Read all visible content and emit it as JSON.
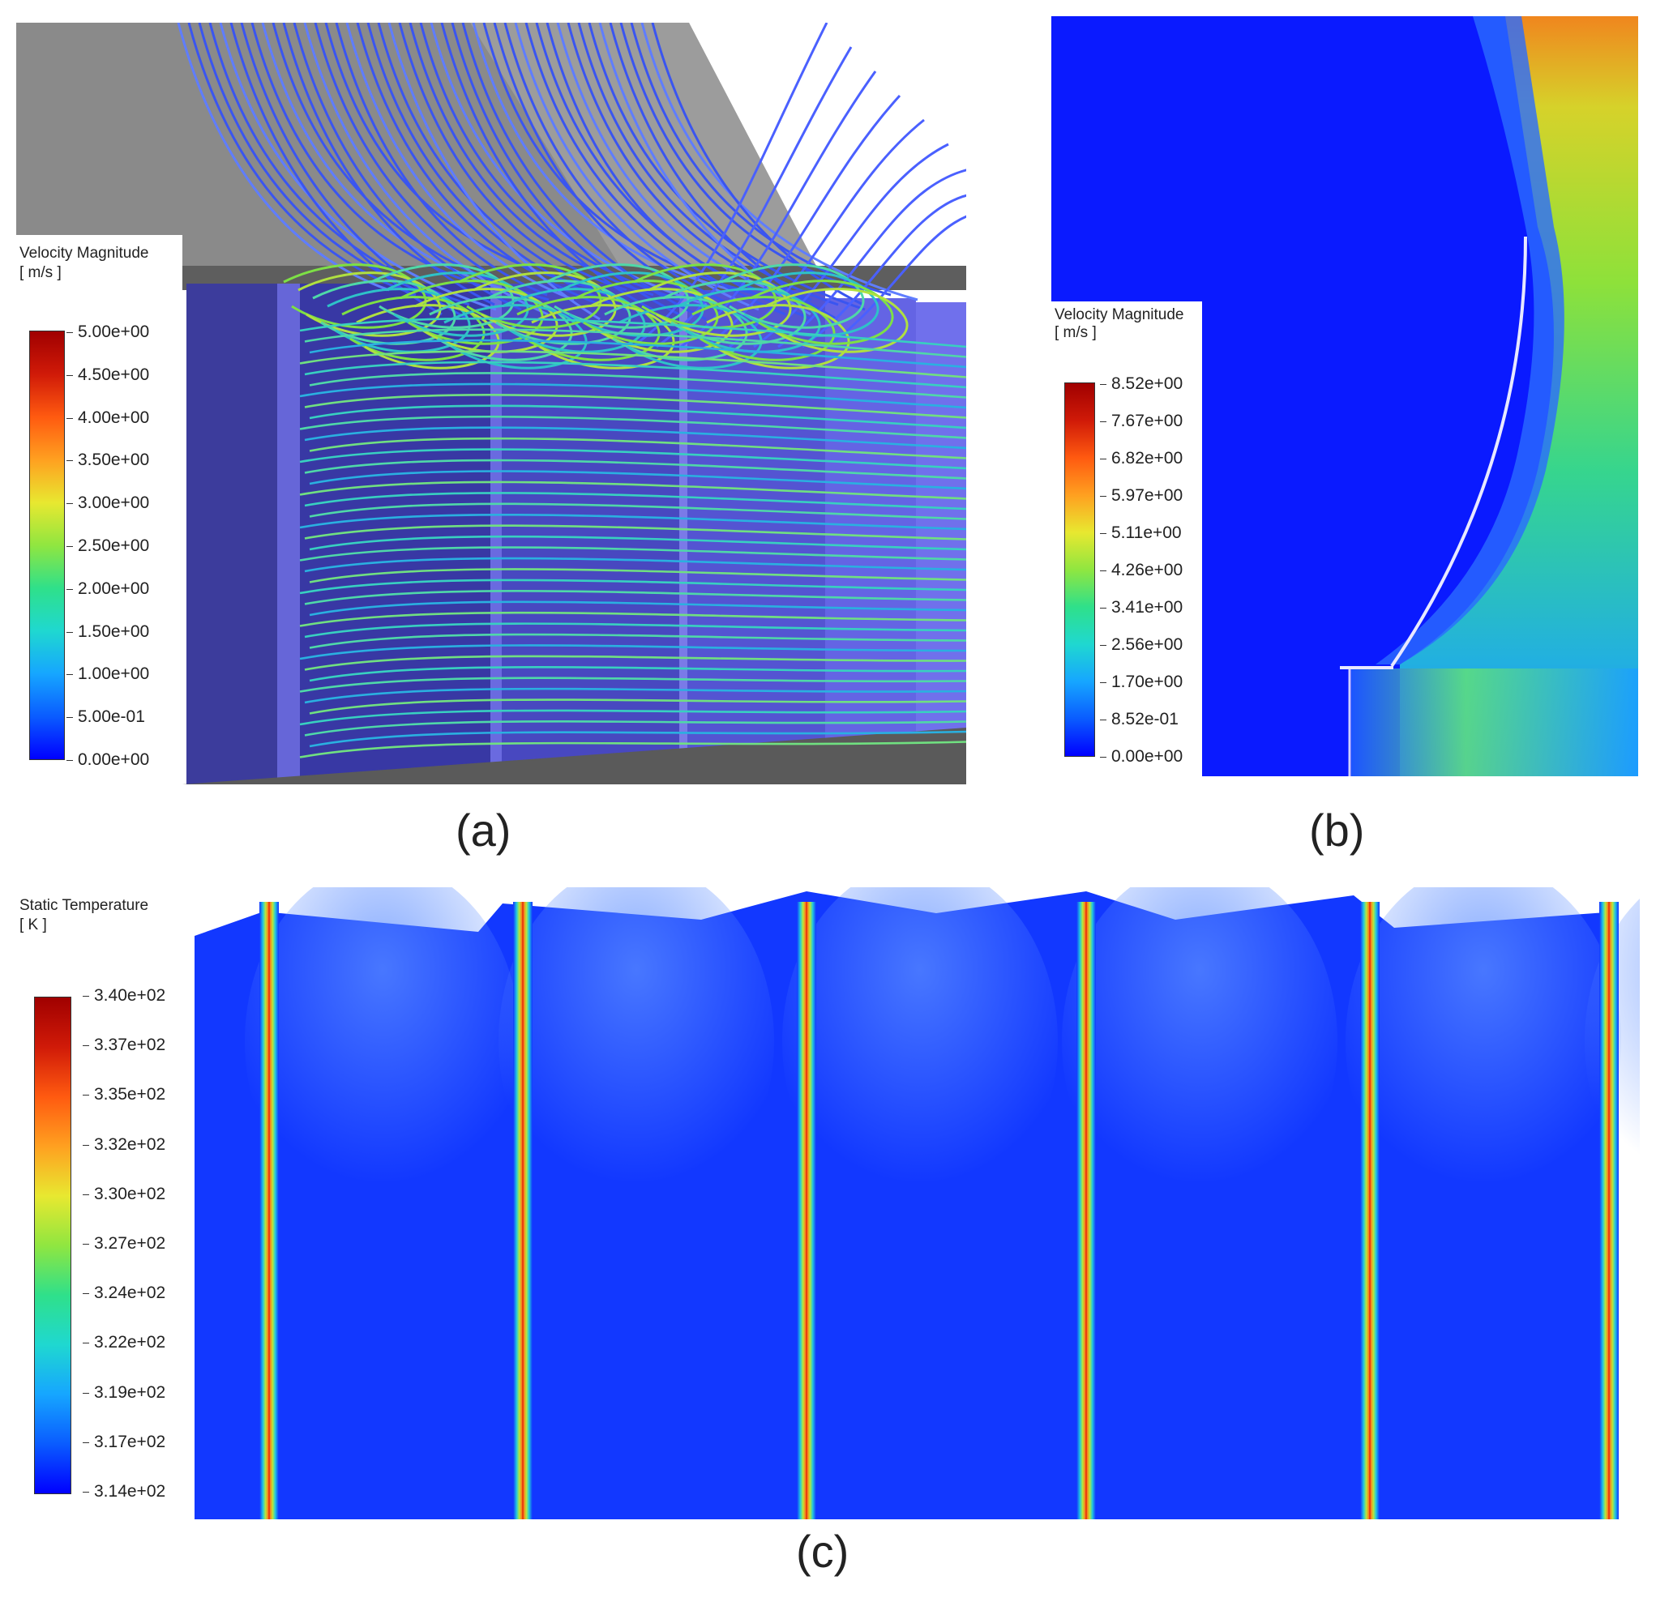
{
  "panels": {
    "a": {
      "caption": "(a)",
      "legend": {
        "title_line1": "Velocity Magnitude",
        "title_line2": "[ m/s ]",
        "ticks": [
          "5.00e+00",
          "4.50e+00",
          "4.00e+00",
          "3.50e+00",
          "3.00e+00",
          "2.50e+00",
          "2.00e+00",
          "1.50e+00",
          "1.00e+00",
          "5.00e-01",
          "0.00e+00"
        ]
      }
    },
    "b": {
      "caption": "(b)",
      "legend": {
        "title_line1": "Velocity Magnitude",
        "title_line2": "[ m/s ]",
        "ticks": [
          "8.52e+00",
          "7.67e+00",
          "6.82e+00",
          "5.97e+00",
          "5.11e+00",
          "4.26e+00",
          "3.41e+00",
          "2.56e+00",
          "1.70e+00",
          "8.52e-01",
          "0.00e+00"
        ]
      }
    },
    "c": {
      "caption": "(c)",
      "legend": {
        "title_line1": "Static Temperature",
        "title_line2": "[ K ]",
        "ticks": [
          "3.40e+02",
          "3.37e+02",
          "3.35e+02",
          "3.32e+02",
          "3.30e+02",
          "3.27e+02",
          "3.24e+02",
          "3.22e+02",
          "3.19e+02",
          "3.17e+02",
          "3.14e+02"
        ]
      }
    }
  },
  "colormap": [
    "#0000ff",
    "#0a5cff",
    "#16a6ff",
    "#1fd8d0",
    "#2fe08a",
    "#90e640",
    "#e8e830",
    "#ffa020",
    "#ff5a10",
    "#d01a08",
    "#a00000"
  ]
}
